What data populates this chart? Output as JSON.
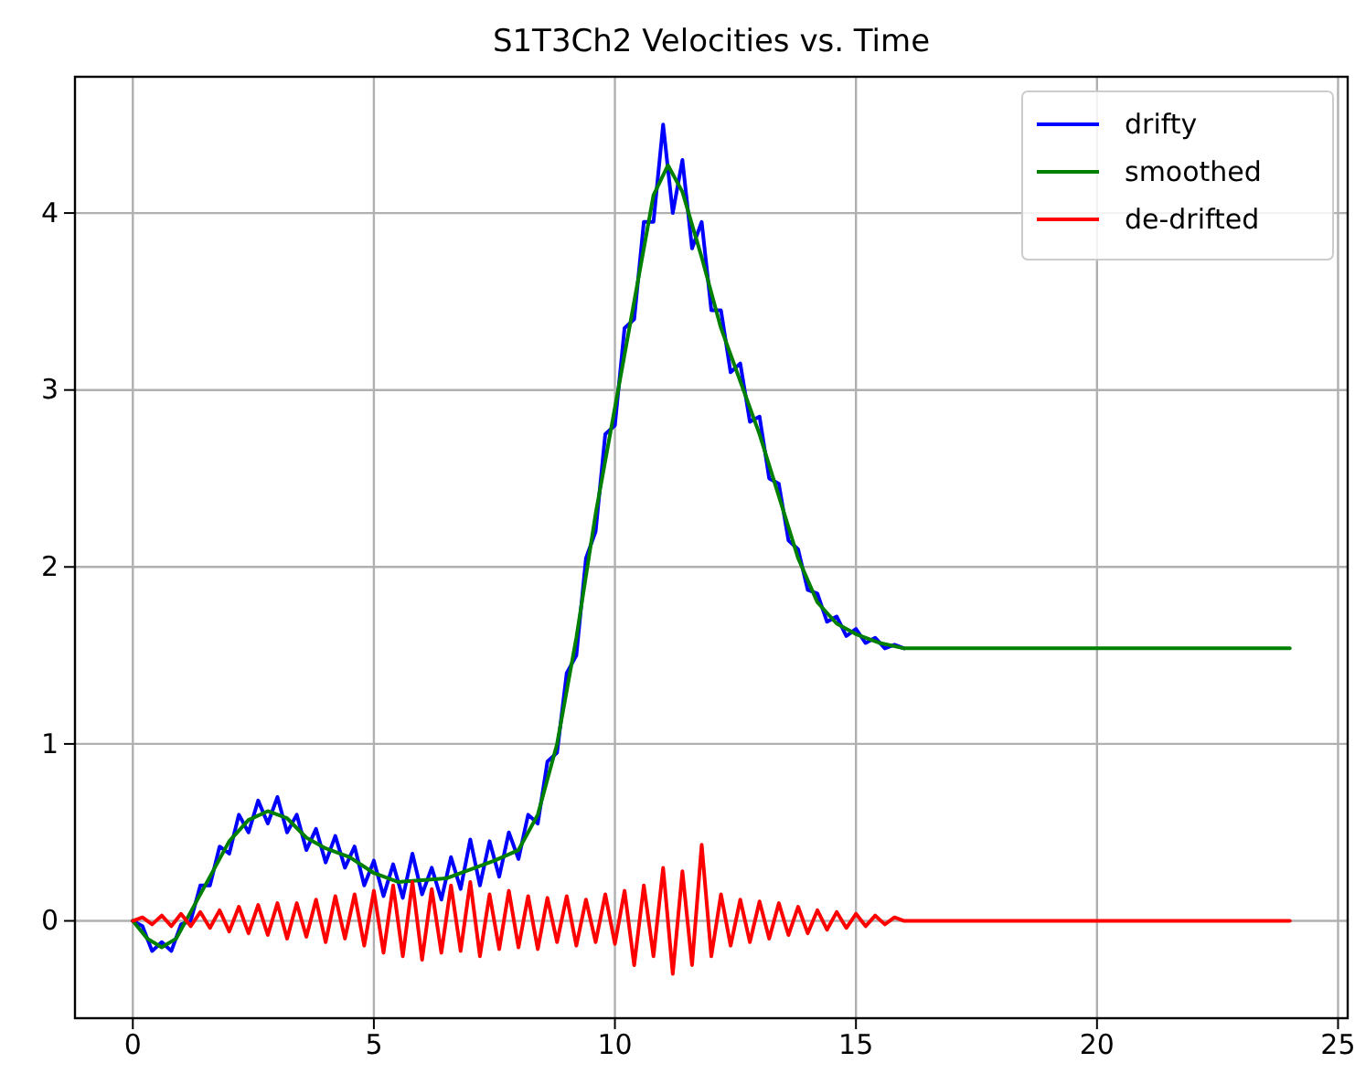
{
  "chart_data": {
    "type": "line",
    "title": "S1T3Ch2 Velocities vs. Time",
    "xlim": [
      -1.2,
      25.2
    ],
    "ylim": [
      -0.55,
      4.77
    ],
    "xticks": [
      0,
      5,
      10,
      15,
      20,
      25
    ],
    "yticks": [
      0,
      1,
      2,
      3,
      4
    ],
    "grid": true,
    "legend": "top right",
    "line_style": "solid",
    "marker": "none",
    "series": [
      {
        "name": "drifty",
        "color": "#0000ff",
        "x": [
          0,
          0.2,
          0.4,
          0.6,
          0.8,
          1.0,
          1.2,
          1.4,
          1.6,
          1.8,
          2.0,
          2.2,
          2.4,
          2.6,
          2.8,
          3.0,
          3.2,
          3.4,
          3.6,
          3.8,
          4.0,
          4.2,
          4.4,
          4.6,
          4.8,
          5.0,
          5.2,
          5.4,
          5.6,
          5.8,
          6.0,
          6.2,
          6.4,
          6.6,
          6.8,
          7.0,
          7.2,
          7.4,
          7.6,
          7.8,
          8.0,
          8.2,
          8.4,
          8.6,
          8.8,
          9.0,
          9.2,
          9.4,
          9.6,
          9.8,
          10.0,
          10.2,
          10.4,
          10.6,
          10.8,
          11.0,
          11.2,
          11.4,
          11.6,
          11.8,
          12.0,
          12.2,
          12.4,
          12.6,
          12.8,
          13.0,
          13.2,
          13.4,
          13.6,
          13.8,
          14.0,
          14.2,
          14.4,
          14.6,
          14.8,
          15.0,
          15.2,
          15.4,
          15.6,
          15.8,
          16.0
        ],
        "values": [
          0,
          -0.03,
          -0.17,
          -0.12,
          -0.17,
          -0.02,
          0.0,
          0.2,
          0.2,
          0.42,
          0.38,
          0.6,
          0.5,
          0.68,
          0.55,
          0.7,
          0.5,
          0.6,
          0.4,
          0.52,
          0.33,
          0.48,
          0.3,
          0.42,
          0.2,
          0.34,
          0.14,
          0.32,
          0.13,
          0.38,
          0.15,
          0.3,
          0.12,
          0.36,
          0.18,
          0.46,
          0.2,
          0.45,
          0.25,
          0.5,
          0.35,
          0.6,
          0.55,
          0.9,
          0.95,
          1.4,
          1.5,
          2.05,
          2.2,
          2.75,
          2.8,
          3.35,
          3.4,
          3.95,
          3.95,
          4.5,
          4.0,
          4.3,
          3.8,
          3.95,
          3.45,
          3.45,
          3.1,
          3.15,
          2.82,
          2.85,
          2.5,
          2.47,
          2.15,
          2.1,
          1.87,
          1.85,
          1.69,
          1.72,
          1.61,
          1.65,
          1.57,
          1.6,
          1.54,
          1.56,
          1.54
        ]
      },
      {
        "name": "smoothed",
        "color": "#008000",
        "x": [
          0,
          0.3,
          0.6,
          0.9,
          1.2,
          1.6,
          2,
          2.4,
          2.8,
          3.2,
          3.6,
          4,
          4.5,
          5,
          5.5,
          6,
          6.5,
          7,
          7.5,
          8,
          8.4,
          8.8,
          9.2,
          9.6,
          10,
          10.4,
          10.8,
          11.1,
          11.4,
          11.8,
          12.2,
          12.6,
          13,
          13.4,
          13.8,
          14.2,
          14.6,
          15,
          15.5,
          16,
          24
        ],
        "values": [
          0,
          -0.1,
          -0.15,
          -0.1,
          0.05,
          0.25,
          0.45,
          0.57,
          0.62,
          0.58,
          0.47,
          0.41,
          0.36,
          0.27,
          0.22,
          0.23,
          0.24,
          0.29,
          0.34,
          0.4,
          0.6,
          1.0,
          1.6,
          2.3,
          2.9,
          3.5,
          4.1,
          4.27,
          4.12,
          3.75,
          3.35,
          3.05,
          2.75,
          2.4,
          2.05,
          1.8,
          1.68,
          1.62,
          1.57,
          1.54,
          1.54
        ]
      },
      {
        "name": "de-drifted",
        "color": "#ff0000",
        "x": [
          0,
          0.2,
          0.4,
          0.6,
          0.8,
          1.0,
          1.2,
          1.4,
          1.6,
          1.8,
          2.0,
          2.2,
          2.4,
          2.6,
          2.8,
          3.0,
          3.2,
          3.4,
          3.6,
          3.8,
          4.0,
          4.2,
          4.4,
          4.6,
          4.8,
          5.0,
          5.2,
          5.4,
          5.6,
          5.8,
          6.0,
          6.2,
          6.4,
          6.6,
          6.8,
          7.0,
          7.2,
          7.4,
          7.6,
          7.8,
          8.0,
          8.2,
          8.4,
          8.6,
          8.8,
          9.0,
          9.2,
          9.4,
          9.6,
          9.8,
          10.0,
          10.2,
          10.4,
          10.6,
          10.8,
          11.0,
          11.2,
          11.4,
          11.6,
          11.8,
          12.0,
          12.2,
          12.4,
          12.6,
          12.8,
          13.0,
          13.2,
          13.4,
          13.6,
          13.8,
          14.0,
          14.2,
          14.4,
          14.6,
          14.8,
          15.0,
          15.2,
          15.4,
          15.6,
          15.8,
          16.0,
          24
        ],
        "values": [
          0,
          0.02,
          -0.02,
          0.03,
          -0.03,
          0.04,
          -0.03,
          0.05,
          -0.04,
          0.06,
          -0.06,
          0.08,
          -0.07,
          0.09,
          -0.08,
          0.1,
          -0.1,
          0.1,
          -0.09,
          0.12,
          -0.12,
          0.14,
          -0.1,
          0.15,
          -0.14,
          0.17,
          -0.18,
          0.2,
          -0.2,
          0.22,
          -0.22,
          0.18,
          -0.18,
          0.2,
          -0.17,
          0.22,
          -0.2,
          0.15,
          -0.16,
          0.17,
          -0.15,
          0.14,
          -0.16,
          0.13,
          -0.12,
          0.14,
          -0.14,
          0.12,
          -0.12,
          0.15,
          -0.13,
          0.17,
          -0.25,
          0.2,
          -0.2,
          0.3,
          -0.3,
          0.28,
          -0.25,
          0.43,
          -0.2,
          0.15,
          -0.14,
          0.12,
          -0.12,
          0.11,
          -0.1,
          0.1,
          -0.08,
          0.08,
          -0.07,
          0.06,
          -0.05,
          0.05,
          -0.04,
          0.04,
          -0.03,
          0.03,
          -0.02,
          0.02,
          0,
          0
        ]
      }
    ]
  }
}
